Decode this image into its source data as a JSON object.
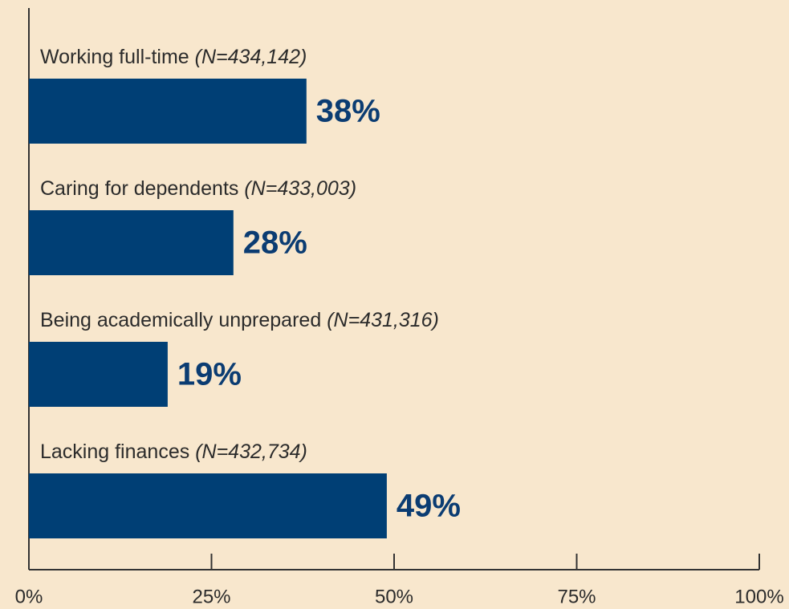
{
  "chart_data": {
    "type": "barh",
    "categories": [
      "Working full-time",
      "Caring for dependents",
      "Being academically unprepared",
      "Lacking finances"
    ],
    "category_notes": [
      "(N=434,142)",
      "(N=433,003)",
      "(N=431,316)",
      "(N=432,734)"
    ],
    "values": [
      38,
      28,
      19,
      49
    ],
    "value_labels": [
      "38%",
      "28%",
      "19%",
      "49%"
    ],
    "color": "#003f75",
    "xlim": [
      0,
      100
    ],
    "xticks": [
      {
        "value": 0,
        "label": "0%"
      },
      {
        "value": 25,
        "label": "25%"
      },
      {
        "value": 50,
        "label": "50%"
      },
      {
        "value": 75,
        "label": "75%"
      },
      {
        "value": 100,
        "label": "100%"
      }
    ]
  }
}
